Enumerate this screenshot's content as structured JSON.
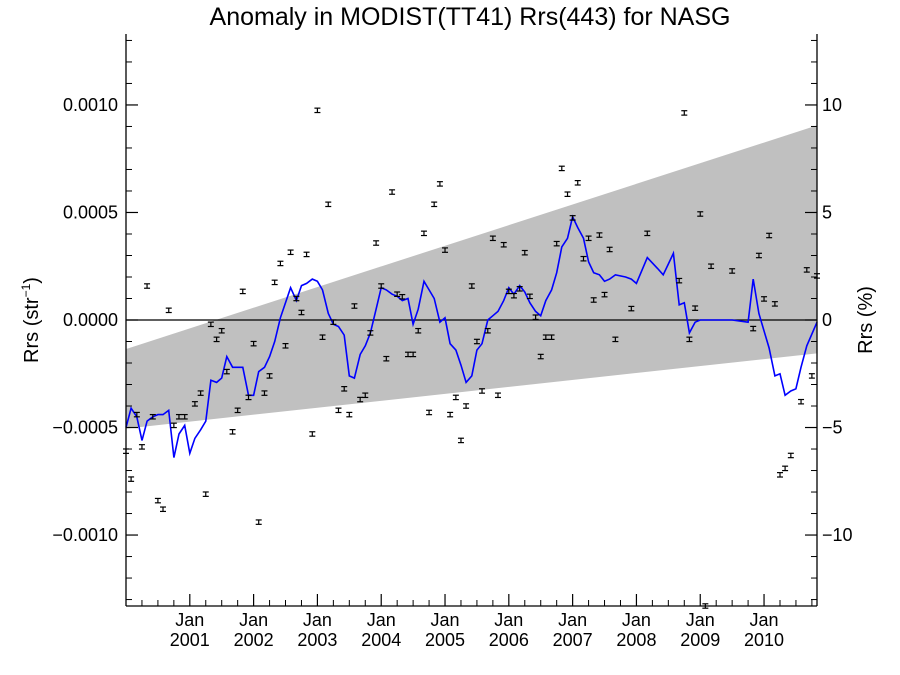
{
  "chart_data": {
    "type": "scatter",
    "title": "Anomaly in MODIST(TT41) Rrs(443) for NASG",
    "ylabel_left_main": "Rrs (str",
    "ylabel_left_sup": "−1",
    "ylabel_left_close": ")",
    "ylabel_right": "Rrs (%)",
    "xlabel": "",
    "x_range": [
      2000.0,
      2010.83
    ],
    "ylim_left": [
      -0.00133,
      0.00133
    ],
    "ylim_right": [
      -13.3,
      13.3
    ],
    "grid": false,
    "legend": "none",
    "colors": {
      "band": "#c0c0c0",
      "running_mean": "#0000ff",
      "points": "#000000",
      "zero_line": "#000000",
      "background": "#ffffff"
    },
    "yticks_left": [
      {
        "value": 0.001,
        "label": "0.0010"
      },
      {
        "value": 0.0005,
        "label": "0.0005"
      },
      {
        "value": 0.0,
        "label": "0.0000"
      },
      {
        "value": -0.0005,
        "label": "−0.0005"
      },
      {
        "value": -0.001,
        "label": "−0.0010"
      }
    ],
    "yticks_right": [
      {
        "value": 10,
        "label": "10"
      },
      {
        "value": 5,
        "label": "5"
      },
      {
        "value": 0,
        "label": "0"
      },
      {
        "value": -5,
        "label": "−5"
      },
      {
        "value": -10,
        "label": "−10"
      }
    ],
    "xticks": [
      {
        "value": 2001.0,
        "month": "Jan",
        "year": "2001"
      },
      {
        "value": 2002.0,
        "month": "Jan",
        "year": "2002"
      },
      {
        "value": 2003.0,
        "month": "Jan",
        "year": "2003"
      },
      {
        "value": 2004.0,
        "month": "Jan",
        "year": "2004"
      },
      {
        "value": 2005.0,
        "month": "Jan",
        "year": "2005"
      },
      {
        "value": 2006.0,
        "month": "Jan",
        "year": "2006"
      },
      {
        "value": 2007.0,
        "month": "Jan",
        "year": "2007"
      },
      {
        "value": 2008.0,
        "month": "Jan",
        "year": "2008"
      },
      {
        "value": 2009.0,
        "month": "Jan",
        "year": "2009"
      },
      {
        "value": 2010.0,
        "month": "Jan",
        "year": "2010"
      }
    ],
    "band": {
      "upper": [
        [
          2000.0,
          -0.000135
        ],
        [
          2010.83,
          0.000905
        ]
      ],
      "lower": [
        [
          2000.0,
          -0.000505
        ],
        [
          2010.83,
          -0.000155
        ]
      ]
    },
    "series": [
      {
        "type": "scatter",
        "points": [
          [
            2000.0,
            -0.00061
          ],
          [
            2000.08,
            -0.00074
          ],
          [
            2000.17,
            -0.00044
          ],
          [
            2000.25,
            -0.00059
          ],
          [
            2000.33,
            0.000158
          ],
          [
            2000.42,
            -0.00045
          ],
          [
            2000.5,
            -0.00084
          ],
          [
            2000.58,
            -0.00088
          ],
          [
            2000.67,
            4.5e-05
          ],
          [
            2000.75,
            -0.00049
          ],
          [
            2000.83,
            -0.00045
          ],
          [
            2000.92,
            -0.00045
          ],
          [
            2001.08,
            -0.00039
          ],
          [
            2001.17,
            -0.00034
          ],
          [
            2001.25,
            -0.00081
          ],
          [
            2001.33,
            -2e-05
          ],
          [
            2001.42,
            -9e-05
          ],
          [
            2001.5,
            -5e-05
          ],
          [
            2001.58,
            -0.00024
          ],
          [
            2001.67,
            -0.00052
          ],
          [
            2001.75,
            -0.00042
          ],
          [
            2001.83,
            0.000133
          ],
          [
            2001.92,
            -0.00036
          ],
          [
            2002.0,
            -0.00011
          ],
          [
            2002.08,
            -0.00094
          ],
          [
            2002.17,
            -0.00034
          ],
          [
            2002.25,
            -0.00026
          ],
          [
            2002.33,
            0.000175
          ],
          [
            2002.42,
            0.000263
          ],
          [
            2002.5,
            -0.00012
          ],
          [
            2002.58,
            0.000315
          ],
          [
            2002.67,
            0.0001
          ],
          [
            2002.75,
            3.5e-05
          ],
          [
            2002.83,
            0.000305
          ],
          [
            2002.92,
            -0.00053
          ],
          [
            2003.0,
            0.000975
          ],
          [
            2003.08,
            -8e-05
          ],
          [
            2003.17,
            0.000538
          ],
          [
            2003.25,
            -1e-05
          ],
          [
            2003.33,
            -0.00042
          ],
          [
            2003.42,
            -0.00032
          ],
          [
            2003.5,
            -0.00044
          ],
          [
            2003.58,
            6.5e-05
          ],
          [
            2003.67,
            -0.00037
          ],
          [
            2003.75,
            -0.00035
          ],
          [
            2003.83,
            -6e-05
          ],
          [
            2003.92,
            0.000358
          ],
          [
            2004.0,
            0.000158
          ],
          [
            2004.08,
            -0.00018
          ],
          [
            2004.17,
            0.000595
          ],
          [
            2004.25,
            0.00012
          ],
          [
            2004.33,
            0.000108
          ],
          [
            2004.42,
            -0.00016
          ],
          [
            2004.5,
            -0.00016
          ],
          [
            2004.58,
            -5e-05
          ],
          [
            2004.67,
            0.000403
          ],
          [
            2004.75,
            -0.00043
          ],
          [
            2004.83,
            0.000538
          ],
          [
            2004.92,
            0.000633
          ],
          [
            2005.0,
            0.000325
          ],
          [
            2005.08,
            -0.00044
          ],
          [
            2005.17,
            -0.00036
          ],
          [
            2005.25,
            -0.00056
          ],
          [
            2005.33,
            -0.0004
          ],
          [
            2005.42,
            0.000158
          ],
          [
            2005.5,
            -0.0001
          ],
          [
            2005.58,
            -0.00033
          ],
          [
            2005.67,
            -5e-05
          ],
          [
            2005.75,
            0.00038
          ],
          [
            2005.83,
            -0.00035
          ],
          [
            2005.92,
            0.00035
          ],
          [
            2006.0,
            0.000133
          ],
          [
            2006.08,
            0.000113
          ],
          [
            2006.17,
            0.000145
          ],
          [
            2006.25,
            0.000313
          ],
          [
            2006.33,
            0.00011
          ],
          [
            2006.42,
            1.3e-05
          ],
          [
            2006.5,
            -0.00017
          ],
          [
            2006.58,
            -8e-05
          ],
          [
            2006.67,
            -8e-05
          ],
          [
            2006.75,
            0.000355
          ],
          [
            2006.83,
            0.000705
          ],
          [
            2006.92,
            0.000585
          ],
          [
            2007.0,
            0.000475
          ],
          [
            2007.08,
            0.000638
          ],
          [
            2007.17,
            0.000285
          ],
          [
            2007.25,
            0.00038
          ],
          [
            2007.33,
            9.3e-05
          ],
          [
            2007.42,
            0.000395
          ],
          [
            2007.5,
            0.000118
          ],
          [
            2007.58,
            0.000328
          ],
          [
            2007.67,
            -9e-05
          ],
          [
            2007.92,
            5.3e-05
          ],
          [
            2008.17,
            0.000403
          ],
          [
            2008.67,
            0.000183
          ],
          [
            2008.75,
            0.000963
          ],
          [
            2008.83,
            -9e-05
          ],
          [
            2008.92,
            5.5e-05
          ],
          [
            2009.0,
            0.000493
          ],
          [
            2009.08,
            -0.00133
          ],
          [
            2009.17,
            0.00025
          ],
          [
            2009.5,
            0.000228
          ],
          [
            2009.83,
            -4e-05
          ],
          [
            2009.92,
            0.0003
          ],
          [
            2010.0,
            9.8e-05
          ],
          [
            2010.08,
            0.000393
          ],
          [
            2010.17,
            7.5e-05
          ],
          [
            2010.25,
            -0.00072
          ],
          [
            2010.33,
            -0.00069
          ],
          [
            2010.42,
            -0.00063
          ],
          [
            2010.58,
            -0.00038
          ],
          [
            2010.67,
            0.000233
          ],
          [
            2010.75,
            -0.00026
          ],
          [
            2010.83,
            0.000205
          ]
        ]
      },
      {
        "type": "line",
        "points": [
          [
            2000.0,
            -0.0005
          ],
          [
            2000.08,
            -0.00041
          ],
          [
            2000.17,
            -0.00045
          ],
          [
            2000.25,
            -0.00056
          ],
          [
            2000.33,
            -0.00047
          ],
          [
            2000.42,
            -0.00045
          ],
          [
            2000.5,
            -0.00044
          ],
          [
            2000.58,
            -0.00044
          ],
          [
            2000.67,
            -0.00042
          ],
          [
            2000.75,
            -0.00064
          ],
          [
            2000.83,
            -0.00053
          ],
          [
            2000.92,
            -0.00049
          ],
          [
            2001.0,
            -0.00062
          ],
          [
            2001.08,
            -0.00055
          ],
          [
            2001.17,
            -0.00051
          ],
          [
            2001.25,
            -0.00047
          ],
          [
            2001.33,
            -0.00028
          ],
          [
            2001.42,
            -0.00029
          ],
          [
            2001.5,
            -0.00027
          ],
          [
            2001.58,
            -0.00017
          ],
          [
            2001.67,
            -0.00022
          ],
          [
            2001.75,
            -0.00022
          ],
          [
            2001.83,
            -0.00022
          ],
          [
            2001.92,
            -0.00035
          ],
          [
            2002.0,
            -0.00035
          ],
          [
            2002.08,
            -0.00024
          ],
          [
            2002.17,
            -0.00022
          ],
          [
            2002.25,
            -0.00017
          ],
          [
            2002.33,
            -0.0001
          ],
          [
            2002.42,
            1e-05
          ],
          [
            2002.5,
            8e-05
          ],
          [
            2002.58,
            0.00015
          ],
          [
            2002.67,
            9e-05
          ],
          [
            2002.75,
            0.00016
          ],
          [
            2002.83,
            0.00017
          ],
          [
            2002.92,
            0.00019
          ],
          [
            2003.0,
            0.00018
          ],
          [
            2003.08,
            0.00014
          ],
          [
            2003.17,
            3e-05
          ],
          [
            2003.25,
            -2e-05
          ],
          [
            2003.33,
            -3e-05
          ],
          [
            2003.42,
            -7e-05
          ],
          [
            2003.5,
            -0.00026
          ],
          [
            2003.58,
            -0.00027
          ],
          [
            2003.67,
            -0.00016
          ],
          [
            2003.75,
            -0.00012
          ],
          [
            2003.83,
            -6e-05
          ],
          [
            2003.92,
            5e-05
          ],
          [
            2004.0,
            0.00015
          ],
          [
            2004.08,
            0.00014
          ],
          [
            2004.17,
            0.00012
          ],
          [
            2004.25,
            0.00011
          ],
          [
            2004.33,
            9e-05
          ],
          [
            2004.42,
            0.0001
          ],
          [
            2004.5,
            -2e-05
          ],
          [
            2004.58,
            5e-05
          ],
          [
            2004.67,
            0.00018
          ],
          [
            2004.75,
            0.00014
          ],
          [
            2004.83,
            0.0001
          ],
          [
            2004.92,
            -1e-05
          ],
          [
            2005.0,
            1e-05
          ],
          [
            2005.08,
            -0.00011
          ],
          [
            2005.17,
            -0.00014
          ],
          [
            2005.25,
            -0.00021
          ],
          [
            2005.33,
            -0.00029
          ],
          [
            2005.42,
            -0.00026
          ],
          [
            2005.5,
            -0.00014
          ],
          [
            2005.58,
            -0.00011
          ],
          [
            2005.67,
            0.0
          ],
          [
            2005.75,
            2e-05
          ],
          [
            2005.83,
            4e-05
          ],
          [
            2005.92,
            9e-05
          ],
          [
            2006.0,
            0.00015
          ],
          [
            2006.08,
            0.00012
          ],
          [
            2006.17,
            0.00016
          ],
          [
            2006.25,
            0.00013
          ],
          [
            2006.33,
            8e-05
          ],
          [
            2006.42,
            4e-05
          ],
          [
            2006.5,
            2e-05
          ],
          [
            2006.58,
            9e-05
          ],
          [
            2006.67,
            0.00014
          ],
          [
            2006.75,
            0.00022
          ],
          [
            2006.83,
            0.00034
          ],
          [
            2006.92,
            0.00038
          ],
          [
            2007.0,
            0.00048
          ],
          [
            2007.08,
            0.00043
          ],
          [
            2007.17,
            0.00038
          ],
          [
            2007.25,
            0.00027
          ],
          [
            2007.33,
            0.00022
          ],
          [
            2007.42,
            0.00021
          ],
          [
            2007.5,
            0.00018
          ],
          [
            2007.58,
            0.00019
          ],
          [
            2007.67,
            0.00021
          ],
          [
            2007.83,
            0.0002
          ],
          [
            2007.92,
            0.00019
          ],
          [
            2008.0,
            0.00017
          ],
          [
            2008.17,
            0.00029
          ],
          [
            2008.33,
            0.00024
          ],
          [
            2008.42,
            0.00021
          ],
          [
            2008.5,
            0.00026
          ],
          [
            2008.58,
            0.00031
          ],
          [
            2008.67,
            7e-05
          ],
          [
            2008.75,
            8e-05
          ],
          [
            2008.83,
            -6e-05
          ],
          [
            2008.92,
            -1e-05
          ],
          [
            2009.0,
            0.0
          ],
          [
            2009.08,
            0.0
          ],
          [
            2009.5,
            0.0
          ],
          [
            2009.75,
            -1e-05
          ],
          [
            2009.83,
            0.00019
          ],
          [
            2009.92,
            3e-05
          ],
          [
            2010.0,
            -5e-05
          ],
          [
            2010.08,
            -0.00013
          ],
          [
            2010.17,
            -0.00026
          ],
          [
            2010.25,
            -0.00025
          ],
          [
            2010.33,
            -0.00035
          ],
          [
            2010.42,
            -0.00033
          ],
          [
            2010.5,
            -0.00032
          ],
          [
            2010.58,
            -0.00022
          ],
          [
            2010.67,
            -0.00012
          ],
          [
            2010.83,
            -1e-05
          ]
        ]
      }
    ]
  }
}
